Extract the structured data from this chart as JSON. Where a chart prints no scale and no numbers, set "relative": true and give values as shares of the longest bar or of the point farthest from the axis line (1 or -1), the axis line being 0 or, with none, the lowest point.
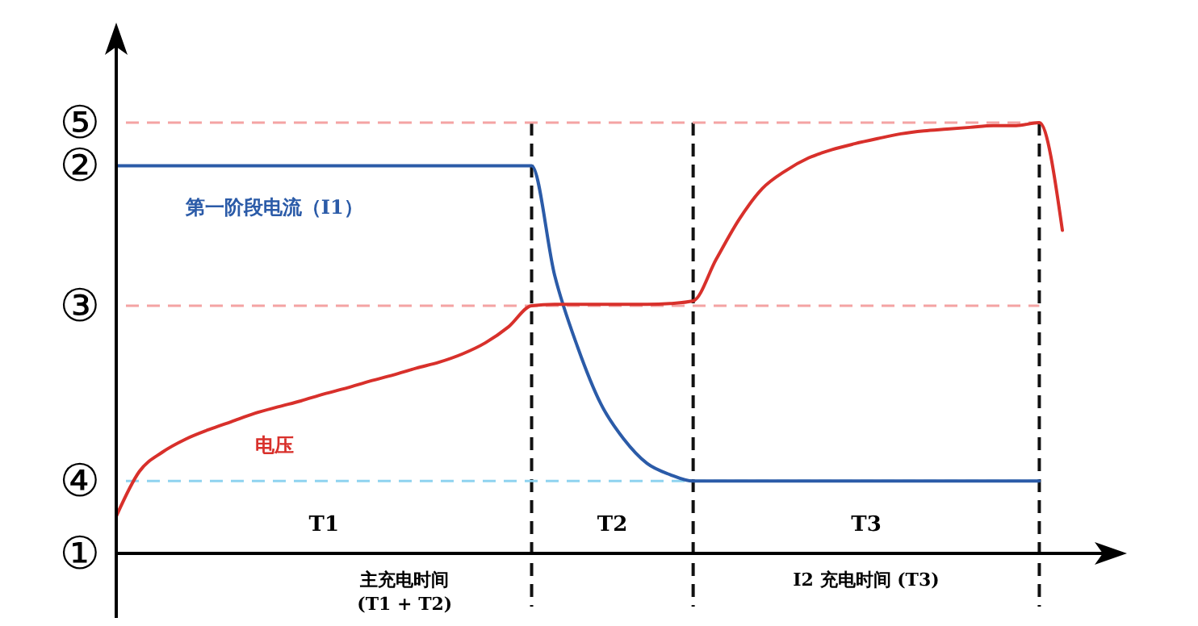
{
  "chart_data": {
    "type": "line",
    "relative": true,
    "categories": [
      null,
      null,
      null,
      null,
      null,
      null,
      null,
      null,
      null,
      null,
      null,
      null,
      null,
      null,
      null,
      null,
      null,
      null,
      null,
      null,
      null,
      null,
      null,
      null,
      null,
      null,
      null,
      null,
      null,
      null,
      null,
      null,
      null,
      null,
      null,
      null,
      null,
      null,
      null,
      null,
      null,
      null
    ],
    "series": [
      {
        "name": "第一阶段电流（I1）",
        "color": "#2b5ba8",
        "values": [
          0.9,
          0.9,
          0.9,
          0.9,
          0.9,
          0.9,
          0.9,
          0.9,
          0.9,
          0.9,
          0.9,
          0.9,
          0.9,
          0.9,
          0.9,
          0.9,
          0.9,
          0.9,
          0.9,
          0.645,
          0.478,
          0.347,
          0.265,
          0.209,
          0.183,
          0.168,
          0.168,
          0.168,
          0.168,
          0.168,
          0.168,
          0.168,
          0.168,
          0.168,
          0.168,
          0.168,
          0.168,
          0.168,
          0.168,
          0.168,
          0.168,
          null
        ]
      },
      {
        "name": "电压",
        "color": "#d8302b",
        "values": [
          0.086,
          0.19,
          0.235,
          0.265,
          0.287,
          0.306,
          0.325,
          0.34,
          0.354,
          0.37,
          0.384,
          0.4,
          0.414,
          0.43,
          0.444,
          0.463,
          0.489,
          0.526,
          0.575,
          0.578,
          0.578,
          0.578,
          0.578,
          0.578,
          0.58,
          0.586,
          0.683,
          0.776,
          0.847,
          0.888,
          0.918,
          0.937,
          0.951,
          0.963,
          0.974,
          0.981,
          0.985,
          0.989,
          0.993,
          0.993,
          1.0,
          0.75
        ]
      }
    ],
    "ref_lines": [
      {
        "axis": "y",
        "value": 1.0,
        "label": "⑤",
        "color": "#f4a3a3",
        "line_style": "dashed"
      },
      {
        "axis": "y",
        "value": 0.575,
        "label": "③",
        "color": "#f4a3a3",
        "line_style": "dashed"
      },
      {
        "axis": "y",
        "value": 0.168,
        "label": "④",
        "color": "#8fd3f0",
        "line_style": "dashed"
      }
    ],
    "annotations": [
      "②",
      "①",
      "T1",
      "T2",
      "T3",
      "主充电时间\n(T1 + T2)",
      "I2 充电时间 (T3)"
    ],
    "grid": "x",
    "legend": false,
    "marker": "none",
    "line_style": "solid"
  }
}
